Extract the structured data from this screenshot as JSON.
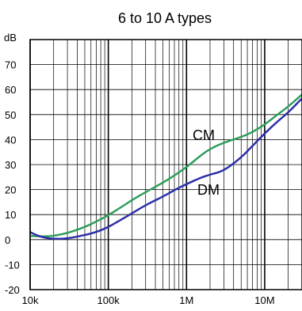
{
  "chart_data": {
    "type": "line",
    "title": "6 to 10 A types",
    "ylabel": "dB",
    "xlabel": "",
    "x_scale": "log",
    "xlim": [
      10000,
      30000000
    ],
    "ylim": [
      -20,
      80
    ],
    "grid": true,
    "x_ticks": [
      {
        "value": 10000,
        "label": "10k"
      },
      {
        "value": 100000,
        "label": "100k"
      },
      {
        "value": 1000000,
        "label": "1M"
      },
      {
        "value": 10000000,
        "label": "10M"
      }
    ],
    "y_ticks": [
      {
        "value": -20,
        "label": "-20"
      },
      {
        "value": -10,
        "label": "-10"
      },
      {
        "value": 0,
        "label": "0"
      },
      {
        "value": 10,
        "label": "10"
      },
      {
        "value": 20,
        "label": "20"
      },
      {
        "value": 30,
        "label": "30"
      },
      {
        "value": 40,
        "label": "40"
      },
      {
        "value": 50,
        "label": "50"
      },
      {
        "value": 60,
        "label": "60"
      },
      {
        "value": 70,
        "label": "70"
      }
    ],
    "series": [
      {
        "name": "CM",
        "color": "#2e9e5b",
        "x": [
          10000,
          15000,
          20000,
          30000,
          50000,
          70000,
          100000,
          150000,
          200000,
          300000,
          500000,
          700000,
          1000000,
          1500000,
          2000000,
          3000000,
          5000000,
          7000000,
          10000000,
          15000000,
          20000000,
          30000000
        ],
        "y": [
          1.5,
          1.2,
          1.5,
          2.6,
          5.0,
          7.2,
          9.7,
          13.2,
          15.8,
          19.0,
          22.8,
          25.6,
          29.0,
          33.5,
          36.3,
          38.8,
          41.0,
          43.0,
          46.0,
          50.3,
          53.2,
          58.0
        ]
      },
      {
        "name": "DM",
        "color": "#2b2fa8",
        "x": [
          10000,
          12000,
          15000,
          20000,
          30000,
          50000,
          70000,
          100000,
          150000,
          200000,
          300000,
          500000,
          700000,
          1000000,
          1500000,
          2000000,
          3000000,
          5000000,
          7000000,
          10000000,
          15000000,
          20000000,
          30000000
        ],
        "y": [
          3.0,
          1.8,
          0.8,
          0.3,
          0.4,
          1.8,
          3.0,
          5.0,
          8.2,
          10.5,
          13.8,
          17.2,
          19.8,
          22.2,
          24.7,
          26.0,
          27.5,
          32.8,
          37.5,
          42.5,
          47.6,
          50.8,
          56.5
        ]
      }
    ],
    "annotations": [
      {
        "text": "CM",
        "series": "CM"
      },
      {
        "text": "DM",
        "series": "DM"
      }
    ]
  }
}
